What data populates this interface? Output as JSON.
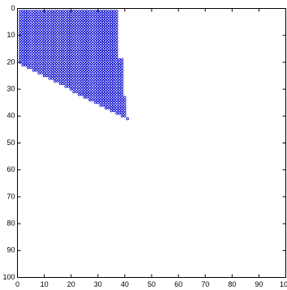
{
  "chart_data": {
    "type": "scatter",
    "color": "#0000cc",
    "xlim": [
      0,
      100
    ],
    "ylim": [
      0,
      100
    ],
    "y_reversed": true,
    "xticks": [
      0,
      10,
      20,
      30,
      40,
      50,
      60,
      70,
      80,
      90,
      100
    ],
    "yticks": [
      0,
      10,
      20,
      30,
      40,
      50,
      60,
      70,
      80,
      90,
      100
    ],
    "grid": false,
    "step": 1,
    "rows": [
      [
        1,
        1,
        37
      ],
      [
        2,
        1,
        37
      ],
      [
        3,
        1,
        37
      ],
      [
        4,
        1,
        37
      ],
      [
        5,
        1,
        37
      ],
      [
        6,
        1,
        37
      ],
      [
        7,
        1,
        37
      ],
      [
        8,
        1,
        37
      ],
      [
        9,
        1,
        37
      ],
      [
        10,
        1,
        37
      ],
      [
        11,
        1,
        37
      ],
      [
        12,
        1,
        37
      ],
      [
        13,
        1,
        37
      ],
      [
        14,
        1,
        37
      ],
      [
        15,
        1,
        37
      ],
      [
        16,
        1,
        37
      ],
      [
        17,
        1,
        37
      ],
      [
        18,
        1,
        37
      ],
      [
        19,
        1,
        39
      ],
      [
        20,
        1,
        39
      ],
      [
        21,
        2,
        39
      ],
      [
        22,
        4,
        39
      ],
      [
        23,
        6,
        39
      ],
      [
        24,
        8,
        39
      ],
      [
        25,
        10,
        39
      ],
      [
        26,
        12,
        39
      ],
      [
        27,
        14,
        39
      ],
      [
        28,
        16,
        39
      ],
      [
        29,
        18,
        39
      ],
      [
        30,
        20,
        39
      ],
      [
        31,
        21,
        39
      ],
      [
        32,
        23,
        39
      ],
      [
        33,
        25,
        40
      ],
      [
        34,
        27,
        40
      ],
      [
        35,
        29,
        40
      ],
      [
        36,
        31,
        40
      ],
      [
        37,
        33,
        40
      ],
      [
        38,
        35,
        40
      ],
      [
        39,
        37,
        40
      ],
      [
        40,
        39,
        40
      ],
      [
        41,
        41,
        41
      ]
    ]
  }
}
